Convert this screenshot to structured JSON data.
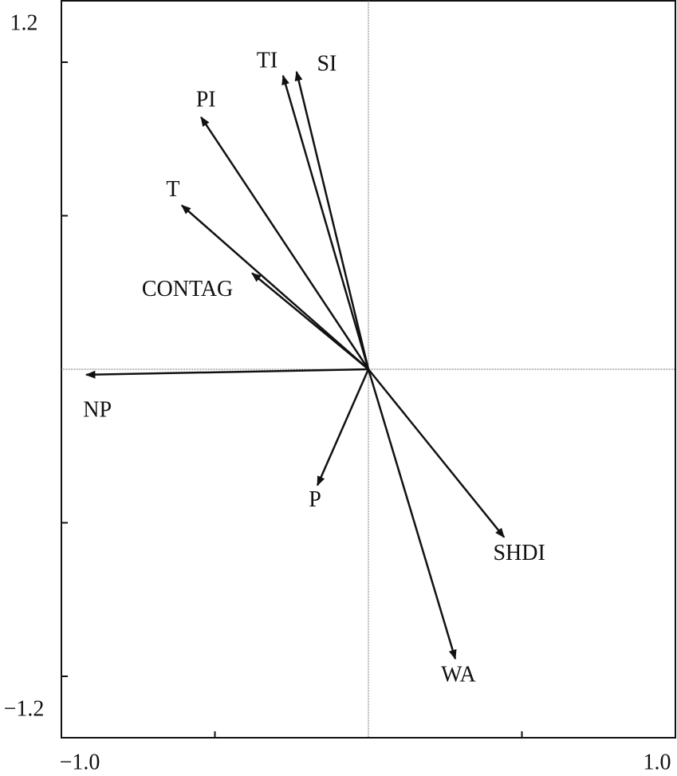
{
  "chart_data": {
    "type": "biplot",
    "xlim": [
      -1,
      1
    ],
    "ylim": [
      -1.2,
      1.2
    ],
    "xticks": [
      {
        "value": -1,
        "label": "−1.0"
      },
      {
        "value": 1,
        "label": "1.0"
      }
    ],
    "yticks": [
      {
        "value": -1.2,
        "label": "−1.2"
      },
      1.2
    ],
    "minor_xticks": [
      -0.5,
      0.5
    ],
    "minor_yticks": [
      -1,
      -0.5,
      0.5,
      1
    ],
    "color": "#111111",
    "vectors": [
      {
        "name": "TI",
        "x": -0.278,
        "y": 0.956
      },
      {
        "name": "SI",
        "x": -0.234,
        "y": 0.969
      },
      {
        "name": "PI",
        "x": -0.545,
        "y": 0.821
      },
      {
        "name": "T",
        "x": -0.608,
        "y": 0.534
      },
      {
        "name": "CONTAG",
        "x": -0.379,
        "y": 0.313
      },
      {
        "name": "NP",
        "x": -0.919,
        "y": -0.018
      },
      {
        "name": "P",
        "x": -0.166,
        "y": -0.378
      },
      {
        "name": "SHDI",
        "x": 0.442,
        "y": -0.547
      },
      {
        "name": "WA",
        "x": 0.283,
        "y": -0.943
      }
    ]
  }
}
